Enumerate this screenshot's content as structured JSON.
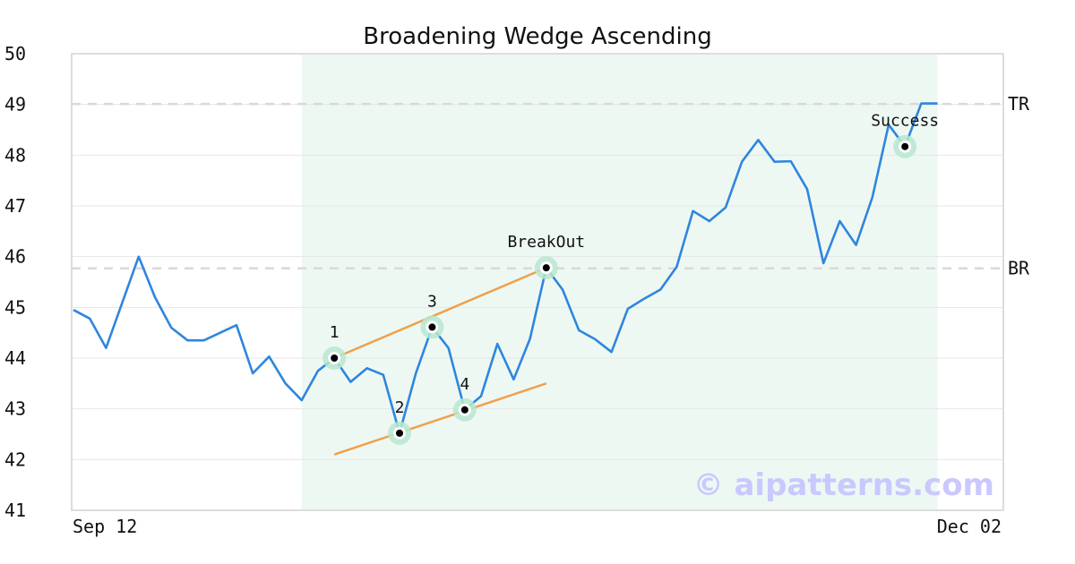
{
  "chart_data": {
    "type": "line",
    "title": "Broadening Wedge Ascending",
    "xlabel": "",
    "ylabel": "",
    "ylim": [
      41,
      50
    ],
    "y_ticks": [
      "41",
      "42",
      "43",
      "44",
      "45",
      "46",
      "47",
      "48",
      "49",
      "50"
    ],
    "x_tick_labels": {
      "first": "Sep 12",
      "last": "Dec 02"
    },
    "x_index_range": [
      0,
      53
    ],
    "grid": true,
    "series": [
      {
        "color": "#2e86de",
        "x": [
          0,
          1,
          2,
          3,
          4,
          5,
          6,
          7,
          8,
          9,
          10,
          11,
          12,
          13,
          14,
          15,
          16,
          17,
          18,
          19,
          20,
          21,
          22,
          23,
          24,
          25,
          26,
          27,
          28,
          29,
          30,
          31,
          32,
          33,
          34,
          35,
          36,
          37,
          38,
          39,
          40,
          41,
          42,
          43,
          44,
          45,
          46,
          47,
          48,
          49,
          50,
          51,
          52,
          53
        ],
        "values": [
          44.95,
          44.78,
          44.2,
          45.1,
          46.0,
          45.2,
          44.6,
          44.35,
          44.35,
          44.5,
          44.65,
          43.7,
          44.03,
          43.5,
          43.17,
          43.75,
          44.0,
          43.53,
          43.8,
          43.67,
          42.52,
          43.7,
          44.61,
          44.2,
          42.98,
          43.25,
          44.28,
          43.58,
          44.38,
          45.78,
          45.35,
          44.55,
          44.37,
          44.12,
          44.97,
          45.17,
          45.35,
          45.8,
          46.9,
          46.7,
          46.97,
          47.87,
          48.3,
          47.87,
          47.88,
          47.33,
          45.87,
          46.7,
          46.23,
          47.17,
          48.6,
          48.17,
          49.02,
          49.02
        ]
      }
    ],
    "highlight_region": {
      "x_start": 14,
      "x_end": 53,
      "color": "#eef8f3"
    },
    "horizontal_lines": [
      {
        "label": "TR",
        "y": 49.01,
        "style": "dashed",
        "color": "#d9d9d9"
      },
      {
        "label": "BR",
        "y": 45.77,
        "style": "dashed",
        "color": "#d9d9d9"
      }
    ],
    "trend_lines": [
      {
        "color": "#f0a04b",
        "x1": 16,
        "y1": 44.0,
        "x2": 29,
        "y2": 45.78
      },
      {
        "color": "#f0a04b",
        "x1": 16,
        "y1": 42.1,
        "x2": 29,
        "y2": 43.5
      }
    ],
    "markers": [
      {
        "label": "1",
        "x": 16,
        "y": 44.0
      },
      {
        "label": "2",
        "x": 20,
        "y": 42.52
      },
      {
        "label": "3",
        "x": 22,
        "y": 44.61
      },
      {
        "label": "4",
        "x": 24,
        "y": 42.98
      },
      {
        "label": "BreakOut",
        "x": 29,
        "y": 45.78
      },
      {
        "label": "Success",
        "x": 51,
        "y": 48.17
      }
    ],
    "watermark": "© aipatterns.com"
  }
}
